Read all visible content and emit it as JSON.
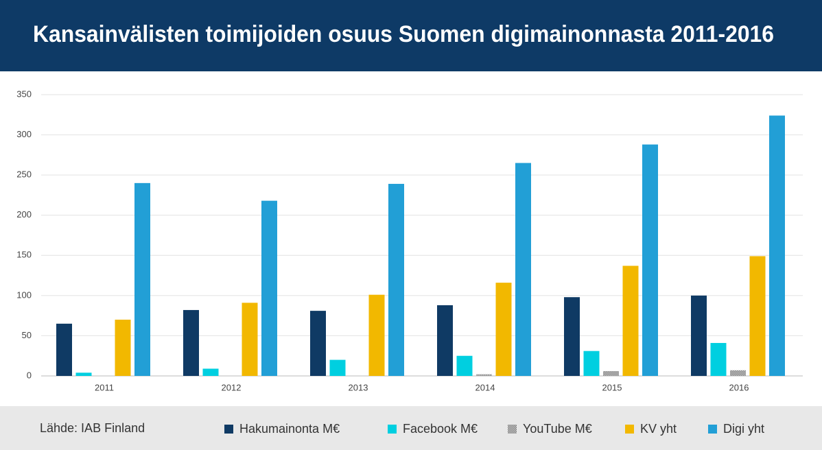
{
  "chart_data": {
    "type": "bar",
    "title": "Kansainvälisten toimijoiden osuus Suomen digimainonnasta 2011-2016",
    "source": "Lähde: IAB Finland",
    "categories": [
      "2011",
      "2012",
      "2013",
      "2014",
      "2015",
      "2016"
    ],
    "series": [
      {
        "name": "Hakumainonta M€",
        "color": "#0f3a64",
        "values": [
          65,
          82,
          81,
          88,
          98,
          100
        ]
      },
      {
        "name": "Facebook M€",
        "color": "#00cfe0",
        "values": [
          4,
          9,
          20,
          25,
          31,
          41
        ]
      },
      {
        "name": "YouTube M€",
        "color": "#9a9a9a",
        "values": [
          0,
          0,
          0,
          2,
          6,
          7
        ]
      },
      {
        "name": "KV yht",
        "color": "#f2b800",
        "values": [
          70,
          91,
          101,
          116,
          137,
          149
        ]
      },
      {
        "name": "Digi yht",
        "color": "#229fd6",
        "values": [
          240,
          218,
          239,
          265,
          288,
          324
        ]
      }
    ],
    "ylim": [
      0,
      350
    ],
    "yticks": [
      0,
      50,
      100,
      150,
      200,
      250,
      300,
      350
    ],
    "grid": true
  }
}
